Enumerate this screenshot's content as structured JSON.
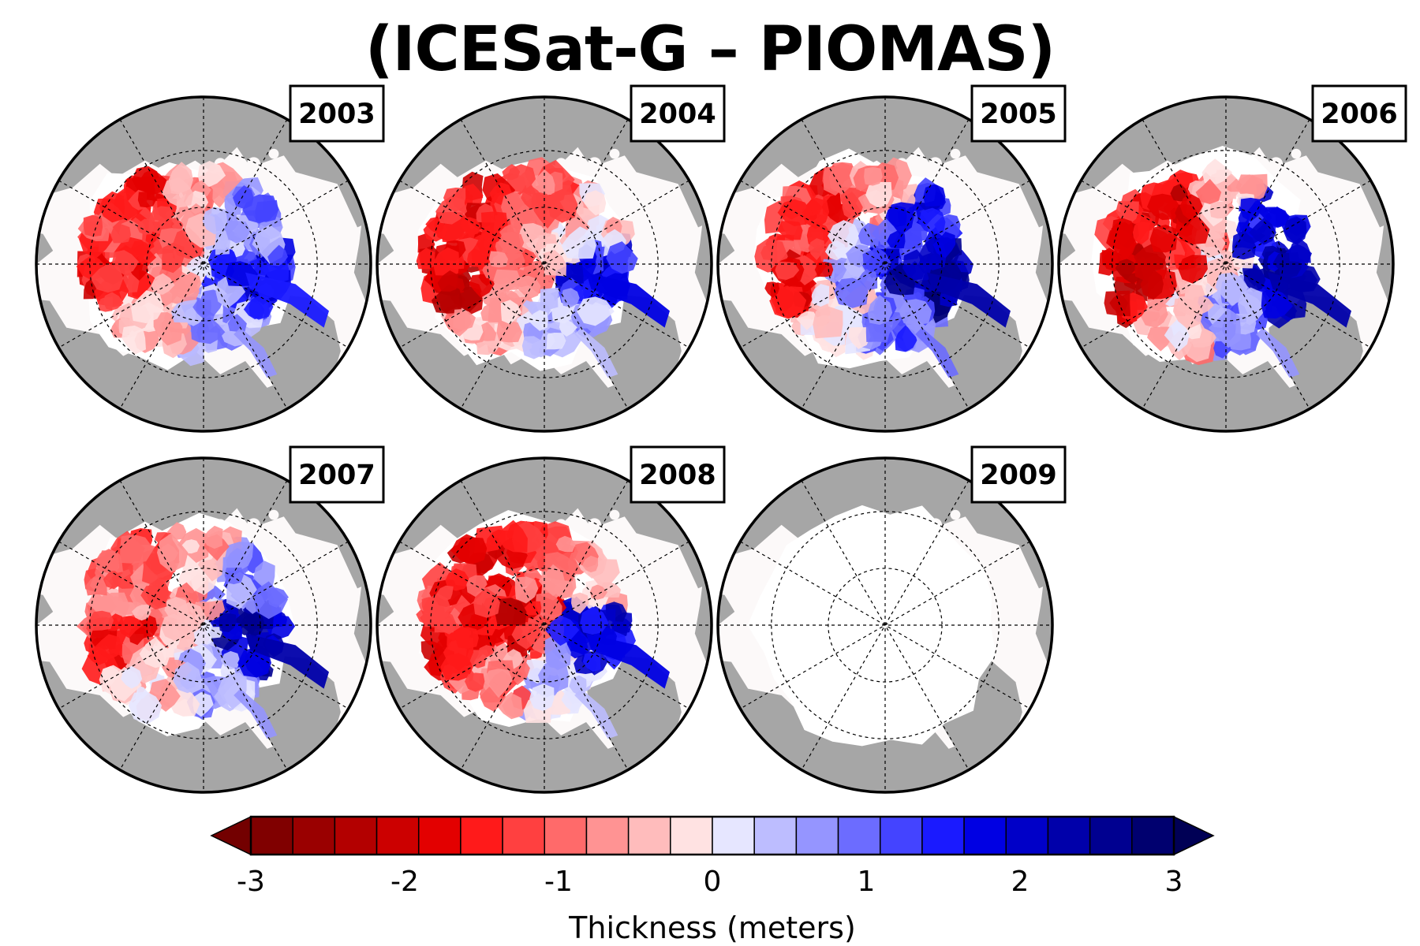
{
  "title": "(ICESat-G – PIOMAS)",
  "panels": [
    {
      "year": "2003",
      "pattern": [
        -1.3,
        -1.6,
        -1.4,
        -0.6,
        0.7,
        1.6,
        0.6,
        -0.4
      ],
      "center": -1.0,
      "has_data": true
    },
    {
      "year": "2004",
      "pattern": [
        -1.5,
        -1.9,
        -1.6,
        -1.0,
        -0.2,
        1.7,
        0.4,
        -0.6
      ],
      "center": -0.8,
      "has_data": true
    },
    {
      "year": "2005",
      "pattern": [
        -1.2,
        -1.6,
        -1.3,
        -0.5,
        1.6,
        2.4,
        1.0,
        -0.2
      ],
      "center": 1.2,
      "has_data": true
    },
    {
      "year": "2006",
      "pattern": [
        -1.6,
        -2.0,
        -1.8,
        -0.5,
        1.7,
        2.2,
        0.8,
        -0.4
      ],
      "center": -0.9,
      "has_data": true
    },
    {
      "year": "2007",
      "pattern": [
        -0.8,
        -1.3,
        -1.1,
        -0.5,
        0.9,
        2.2,
        0.6,
        -0.2
      ],
      "center": -0.6,
      "has_data": true
    },
    {
      "year": "2008",
      "pattern": [
        -1.4,
        -1.6,
        -1.8,
        -1.1,
        -0.6,
        1.8,
        0.3,
        -0.9
      ],
      "center": -1.9,
      "has_data": true
    },
    {
      "year": "2009",
      "pattern": [],
      "center": null,
      "has_data": false
    }
  ],
  "colorbar": {
    "label": "Thickness (meters)",
    "min": -3,
    "max": 3,
    "ticks": [
      {
        "value": -3,
        "label": "-3"
      },
      {
        "value": -2,
        "label": "-2"
      },
      {
        "value": -1,
        "label": "-1"
      },
      {
        "value": 0,
        "label": "0"
      },
      {
        "value": 1,
        "label": "1"
      },
      {
        "value": 2,
        "label": "2"
      },
      {
        "value": 3,
        "label": "3"
      }
    ],
    "colors": [
      "#800000",
      "#9a0000",
      "#b30000",
      "#cc0000",
      "#e30000",
      "#ff1a1a",
      "#ff4040",
      "#ff6a6a",
      "#ff9393",
      "#ffbcbc",
      "#ffe2e2",
      "#e6e6ff",
      "#bdbdff",
      "#9595ff",
      "#6c6cff",
      "#4444ff",
      "#1a1aff",
      "#0000e3",
      "#0000c8",
      "#0000aa",
      "#000090",
      "#00006f"
    ],
    "under_color": "#730000",
    "over_color": "#000055"
  },
  "colors": {
    "land": "#a6a6a6",
    "ocean": "#fcf9f9",
    "no_data_ice": "#ffffff"
  }
}
